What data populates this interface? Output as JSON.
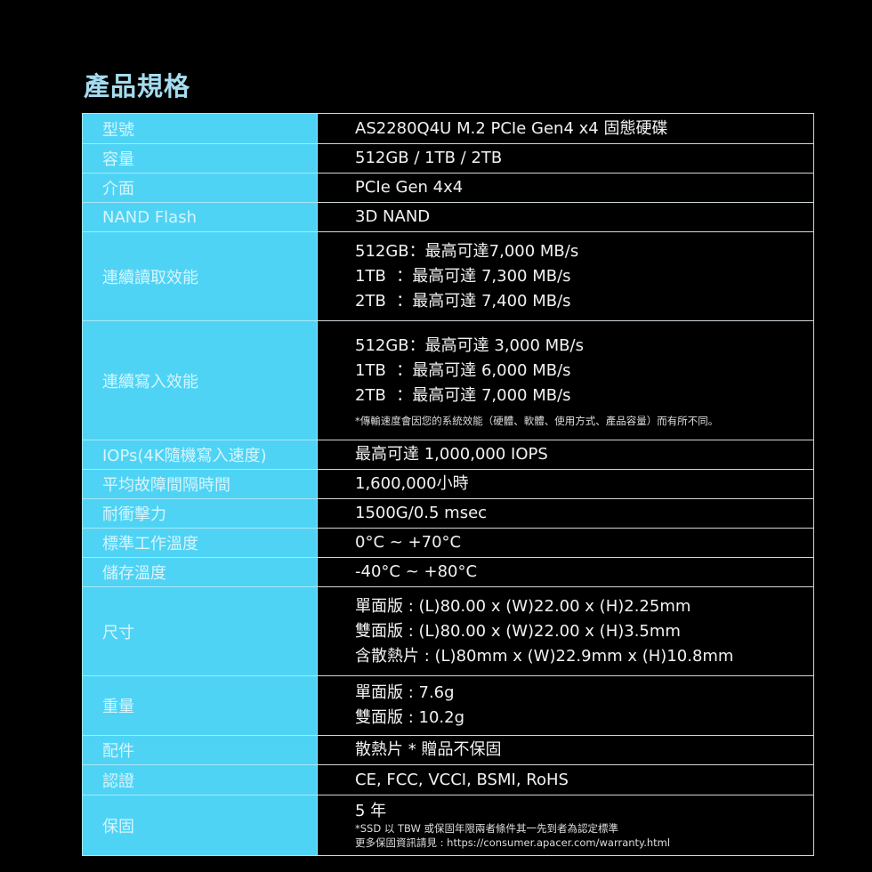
{
  "title": "產品規格",
  "accent_color": "#4fd3f4",
  "rows": [
    {
      "label": "型號",
      "lines": [
        "AS2280Q4U M.2 PCIe Gen4 x4 固態硬碟"
      ]
    },
    {
      "label": "容量",
      "lines": [
        "512GB / 1TB / 2TB"
      ]
    },
    {
      "label": "介面",
      "lines": [
        "PCIe Gen 4x4"
      ]
    },
    {
      "label": "NAND Flash",
      "lines": [
        "3D NAND"
      ]
    },
    {
      "label": "連續讀取效能",
      "lines": [
        "512GB：最高可達7,000 MB/s",
        "1TB  ：最高可達 7,300 MB/s",
        "2TB  ：最高可達 7,400 MB/s"
      ]
    },
    {
      "label": "連續寫入效能",
      "lines": [
        "512GB：最高可達 3,000 MB/s",
        "1TB  ：最高可達 6,000 MB/s",
        "2TB  ：最高可達 7,000 MB/s"
      ],
      "notes": [
        "*傳輸速度會因您的系統效能（硬體、軟體、使用方式、產品容量）而有所不同。"
      ]
    },
    {
      "label": "IOPs(4K隨機寫入速度)",
      "lines": [
        "最高可達 1,000,000 IOPS"
      ]
    },
    {
      "label": "平均故障間隔時間",
      "lines": [
        "1,600,000小時"
      ]
    },
    {
      "label": "耐衝擊力",
      "lines": [
        "1500G/0.5 msec"
      ]
    },
    {
      "label": "標準工作溫度",
      "lines": [
        "0°C ~ +70°C"
      ]
    },
    {
      "label": "儲存溫度",
      "lines": [
        "-40°C ~ +80°C"
      ]
    },
    {
      "label": "尺寸",
      "lines": [
        "單面版 : (L)80.00 x (W)22.00 x (H)2.25mm",
        "雙面版 : (L)80.00 x (W)22.00 x (H)3.5mm",
        "含散熱片 : (L)80mm x (W)22.9mm x (H)10.8mm"
      ]
    },
    {
      "label": "重量",
      "lines": [
        "單面版 : 7.6g",
        "雙面版 : 10.2g"
      ]
    },
    {
      "label": "配件",
      "lines": [
        "散熱片 * 贈品不保固"
      ]
    },
    {
      "label": "認證",
      "lines": [
        "CE, FCC, VCCI, BSMI, RoHS"
      ]
    },
    {
      "label": "保固",
      "lines": [
        "5 年"
      ],
      "notes": [
        "*SSD 以 TBW 或保固年限兩者條件其一先到者為認定標準",
        "更多保固資訊請見 : https://consumer.apacer.com/warranty.html"
      ]
    }
  ]
}
